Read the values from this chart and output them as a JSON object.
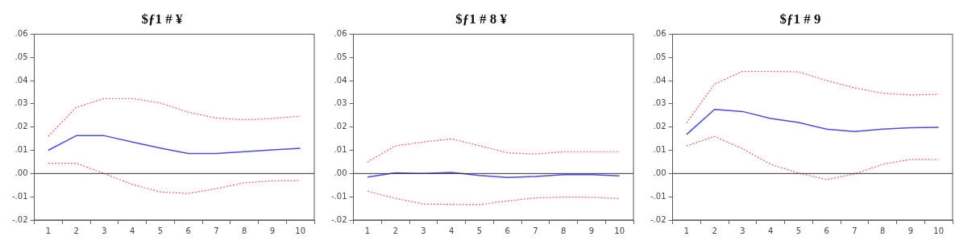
{
  "chart_data": [
    {
      "type": "line",
      "title": "$ƒ1 # ¥",
      "categories": [
        "1",
        "2",
        "3",
        "4",
        "5",
        "6",
        "7",
        "8",
        "9",
        "10"
      ],
      "series": [
        {
          "color": "#4a4aee",
          "line_style": "solid",
          "values": [
            0.01,
            0.0163,
            0.0163,
            0.0136,
            0.011,
            0.0086,
            0.0086,
            0.0094,
            0.0102,
            0.0109
          ]
        },
        {
          "color": "#f06060",
          "line_style": "dotted",
          "values": [
            0.016,
            0.0285,
            0.0323,
            0.0323,
            0.0304,
            0.0264,
            0.0239,
            0.0231,
            0.0237,
            0.0247
          ]
        },
        {
          "color": "#f06060",
          "line_style": "dotted",
          "values": [
            0.0044,
            0.0044,
            0.0,
            -0.0047,
            -0.0079,
            -0.0086,
            -0.0065,
            -0.004,
            -0.0031,
            -0.003
          ]
        }
      ],
      "ylim": [
        -0.02,
        0.06
      ],
      "yticks": [
        {
          "value": 0.06,
          "label": ".06"
        },
        {
          "value": 0.05,
          "label": ".05"
        },
        {
          "value": 0.04,
          "label": ".04"
        },
        {
          "value": 0.03,
          "label": ".03"
        },
        {
          "value": 0.02,
          "label": ".02"
        },
        {
          "value": 0.01,
          "label": ".01"
        },
        {
          "value": 0,
          "label": ".00"
        },
        {
          "value": -0.01,
          "label": "-.01"
        },
        {
          "value": -0.02,
          "label": "-.02"
        }
      ],
      "ref_lines": [
        {
          "axis": "y",
          "value": 0,
          "color": "#333333"
        }
      ],
      "grid": false,
      "legend": false
    },
    {
      "type": "line",
      "title": "$ƒ1 # 8 ¥",
      "categories": [
        "1",
        "2",
        "3",
        "4",
        "5",
        "6",
        "7",
        "8",
        "9",
        "10"
      ],
      "series": [
        {
          "color": "#4a4aee",
          "line_style": "solid",
          "values": [
            -0.0015,
            0.0003,
            0.0,
            0.0005,
            -0.0008,
            -0.0017,
            -0.0013,
            -0.0005,
            -0.0005,
            -0.001
          ]
        },
        {
          "color": "#f06060",
          "line_style": "dotted",
          "values": [
            0.005,
            0.0119,
            0.0136,
            0.0149,
            0.012,
            0.0089,
            0.0084,
            0.0094,
            0.0094,
            0.0094
          ]
        },
        {
          "color": "#f06060",
          "line_style": "dotted",
          "values": [
            -0.0076,
            -0.0107,
            -0.0131,
            -0.0133,
            -0.0134,
            -0.0118,
            -0.0105,
            -0.0101,
            -0.0102,
            -0.0108
          ]
        }
      ],
      "ylim": [
        -0.02,
        0.06
      ],
      "yticks": [
        {
          "value": 0.06,
          "label": ".06"
        },
        {
          "value": 0.05,
          "label": ".05"
        },
        {
          "value": 0.04,
          "label": ".04"
        },
        {
          "value": 0.03,
          "label": ".03"
        },
        {
          "value": 0.02,
          "label": ".02"
        },
        {
          "value": 0.01,
          "label": ".01"
        },
        {
          "value": 0,
          "label": ".00"
        },
        {
          "value": -0.01,
          "label": "-.01"
        },
        {
          "value": -0.02,
          "label": "-.02"
        }
      ],
      "ref_lines": [
        {
          "axis": "y",
          "value": 0,
          "color": "#333333"
        }
      ],
      "grid": false,
      "legend": false
    },
    {
      "type": "line",
      "title": "$ƒ1 # 9",
      "categories": [
        "1",
        "2",
        "3",
        "4",
        "5",
        "6",
        "7",
        "8",
        "9",
        "10"
      ],
      "series": [
        {
          "color": "#4a4aee",
          "line_style": "solid",
          "values": [
            0.0168,
            0.0276,
            0.0267,
            0.0237,
            0.022,
            0.0191,
            0.0181,
            0.0191,
            0.0197,
            0.0199
          ]
        },
        {
          "color": "#f06060",
          "line_style": "dotted",
          "values": [
            0.0218,
            0.0385,
            0.044,
            0.044,
            0.0438,
            0.04,
            0.0369,
            0.0346,
            0.0338,
            0.0341
          ]
        },
        {
          "color": "#f06060",
          "line_style": "dotted",
          "values": [
            0.0119,
            0.016,
            0.0107,
            0.004,
            0.0002,
            -0.0026,
            -0.0002,
            0.004,
            0.0061,
            0.006
          ]
        }
      ],
      "ylim": [
        -0.02,
        0.06
      ],
      "yticks": [
        {
          "value": 0.06,
          "label": ".06"
        },
        {
          "value": 0.05,
          "label": ".05"
        },
        {
          "value": 0.04,
          "label": ".04"
        },
        {
          "value": 0.03,
          "label": ".03"
        },
        {
          "value": 0.02,
          "label": ".02"
        },
        {
          "value": 0.01,
          "label": ".01"
        },
        {
          "value": 0,
          "label": ".00"
        },
        {
          "value": -0.01,
          "label": "-.01"
        },
        {
          "value": -0.02,
          "label": "-.02"
        }
      ],
      "ref_lines": [
        {
          "axis": "y",
          "value": 0,
          "color": "#333333"
        }
      ],
      "grid": false,
      "legend": false
    }
  ]
}
